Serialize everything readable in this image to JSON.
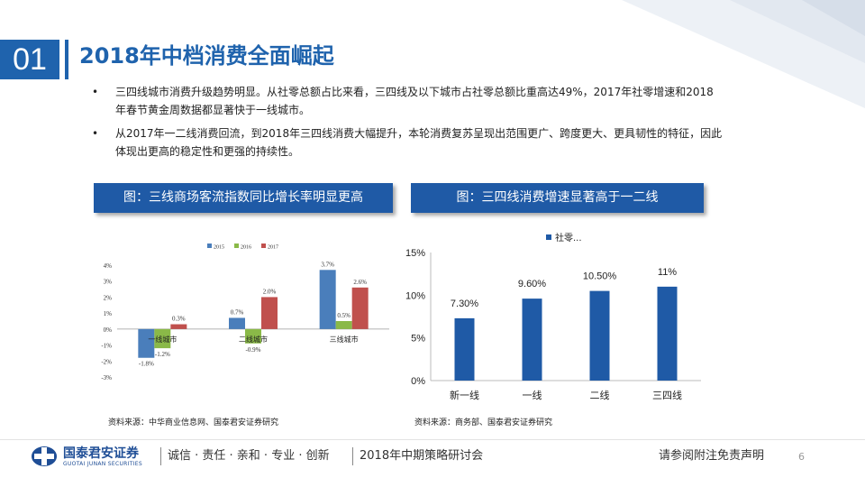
{
  "header": {
    "section_number": "01",
    "title": "2018年中档消费全面崛起"
  },
  "bullets": [
    "三四线城市消费升级趋势明显。从社零总额占比来看，三四线及以下城市占社零总额比重高达49%，2017年社零增速和2018年春节黄金周数据都显著快于一线城市。",
    "从2017年一二线消费回流，到2018年三四线消费大幅提升，本轮消费复苏呈现出范围更广、跨度更大、更具韧性的特征，因此体现出更高的稳定性和更强的持续性。"
  ],
  "figures": [
    {
      "title": "图：三线商场客流指数同比增长率明显更高",
      "source": "资料来源：中华商业信息网、国泰君安证券研究"
    },
    {
      "title": "图：三四线消费增速显著高于一二线",
      "source": "资料来源：商务部、国泰君安证券研究"
    }
  ],
  "chart_data": [
    {
      "type": "bar",
      "categories": [
        "一线城市",
        "二线城市",
        "三线城市"
      ],
      "series": [
        {
          "name": "2015",
          "values": [
            -1.8,
            0.7,
            3.7
          ],
          "labels": [
            "-1.8%",
            "0.7%",
            "3.7%"
          ]
        },
        {
          "name": "2016",
          "values": [
            -1.2,
            -0.9,
            0.5
          ],
          "labels": [
            "-1.2%",
            "-0.9%",
            "0.5%"
          ]
        },
        {
          "name": "2017",
          "values": [
            0.3,
            2.0,
            2.6
          ],
          "labels": [
            "0.3%",
            "2.0%",
            "2.6%"
          ]
        }
      ],
      "ylim": [
        -3,
        4
      ],
      "yticks": [
        -3,
        -2,
        -1,
        0,
        1,
        2,
        3,
        4
      ],
      "ytick_labels": [
        "-3%",
        "-2%",
        "-1%",
        "0%",
        "1%",
        "2%",
        "3%",
        "4%"
      ],
      "legend_position": "top",
      "colors": [
        "#4a7ebb",
        "#8ab948",
        "#c0504d"
      ]
    },
    {
      "type": "bar",
      "categories": [
        "新一线",
        "一线",
        "二线",
        "三四线"
      ],
      "series": [
        {
          "name": "社零...",
          "values": [
            7.3,
            9.6,
            10.5,
            11
          ],
          "labels": [
            "7.30%",
            "9.60%",
            "10.50%",
            "11%"
          ]
        }
      ],
      "ylim": [
        0,
        15
      ],
      "yticks": [
        0,
        5,
        10,
        15
      ],
      "ytick_labels": [
        "0%",
        "5%",
        "10%",
        "15%"
      ],
      "legend_position": "top",
      "colors": [
        "#1f5aa6"
      ]
    }
  ],
  "footer": {
    "logo_cn": "国泰君安证券",
    "logo_en": "GUOTAI JUNAN SECURITIES",
    "values": "诚信 · 责任 · 亲和 · 专业 · 创新",
    "event": "2018年中期策略研讨会",
    "disclaimer": "请参阅附注免责声明",
    "page_number": "6"
  },
  "colors": {
    "brand": "#1f63ad",
    "title_box": "#1f5aa6"
  }
}
